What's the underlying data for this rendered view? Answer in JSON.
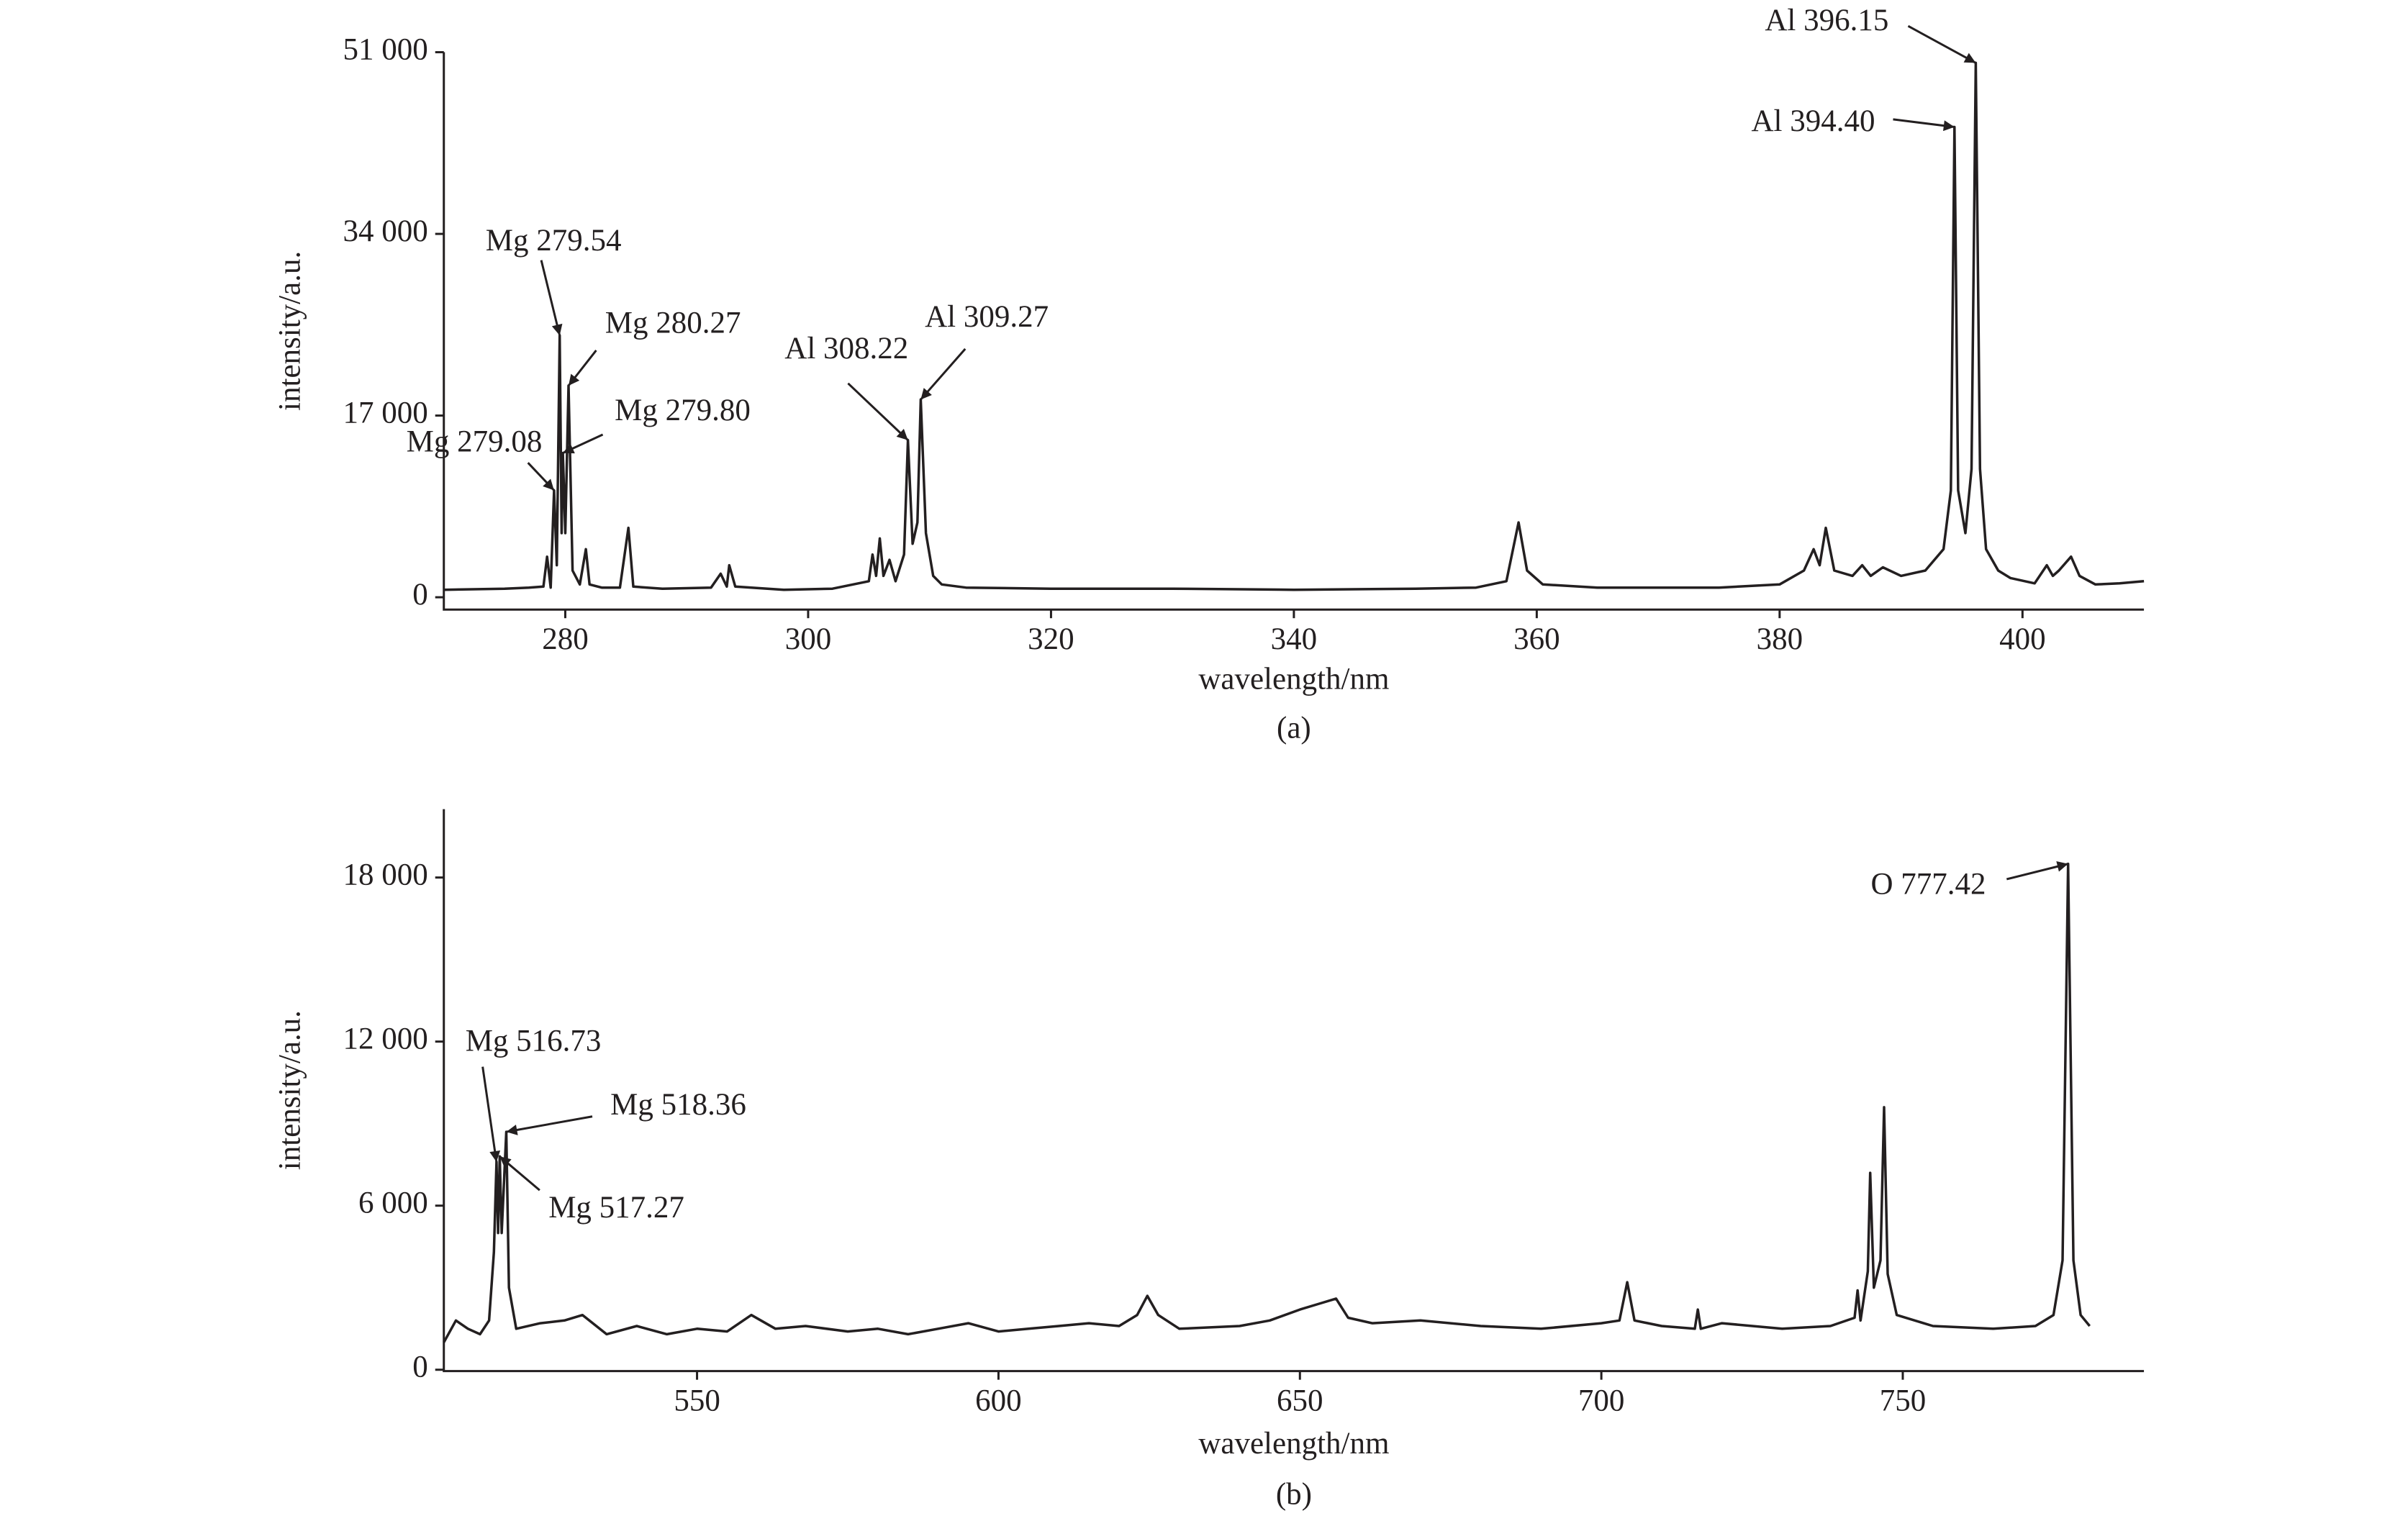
{
  "chart_data": [
    {
      "type": "line",
      "title": "(a)",
      "xlabel": "wavelength/nm",
      "ylabel": "intensity/a.u.",
      "xlim": [
        270,
        410
      ],
      "xticks": [
        280,
        300,
        320,
        340,
        360,
        380,
        400
      ],
      "ylim": [
        -1150,
        51000
      ],
      "yticks": [
        0,
        {
          "value": 17000,
          "label": "17 000"
        },
        {
          "value": 34000,
          "label": "34 000"
        },
        {
          "value": 51000,
          "label": "51 000"
        }
      ],
      "series": [
        {
          "color": "#231f20",
          "x": [
            270,
            275,
            277,
            278.2,
            278.5,
            278.8,
            279.08,
            279.3,
            279.54,
            279.7,
            279.8,
            280.0,
            280.27,
            280.6,
            281.2,
            281.7,
            282.0,
            283,
            284.5,
            285.2,
            285.6,
            288,
            292,
            292.8,
            293.3,
            293.5,
            294,
            298,
            302,
            305,
            305.3,
            305.6,
            305.9,
            306.2,
            306.7,
            307.2,
            307.9,
            308.22,
            308.6,
            309.0,
            309.27,
            309.7,
            310.3,
            311,
            313,
            320,
            330,
            340,
            350,
            355,
            357.5,
            358.5,
            359.2,
            360.5,
            365,
            370,
            375,
            380,
            382,
            382.8,
            383.3,
            383.8,
            384.5,
            386,
            386.8,
            387.5,
            388.5,
            390,
            392,
            393.5,
            394.1,
            394.4,
            394.7,
            395.3,
            395.8,
            396.15,
            396.5,
            397,
            398,
            399,
            401,
            402,
            402.5,
            403,
            404,
            404.7,
            406,
            408,
            410
          ],
          "values": [
            700,
            800,
            900,
            1000,
            3800,
            900,
            10000,
            3000,
            24500,
            6000,
            13500,
            6000,
            19800,
            2500,
            1200,
            4500,
            1200,
            900,
            900,
            6500,
            1000,
            800,
            900,
            2200,
            1000,
            3000,
            1000,
            700,
            800,
            1500,
            4000,
            2000,
            5500,
            2000,
            3500,
            1500,
            4000,
            14700,
            5000,
            7000,
            18500,
            6000,
            2000,
            1200,
            900,
            800,
            800,
            700,
            800,
            900,
            1500,
            7000,
            2500,
            1200,
            900,
            900,
            900,
            1200,
            2500,
            4500,
            3000,
            6500,
            2500,
            2000,
            3000,
            2000,
            2800,
            2000,
            2500,
            4500,
            10000,
            44000,
            10000,
            6000,
            12000,
            50000,
            12000,
            4500,
            2500,
            1800,
            1300,
            3000,
            2000,
            2500,
            3800,
            2000,
            1200,
            1300,
            1500
          ]
        }
      ],
      "annotations": [
        {
          "text": "Al 396.15",
          "x": 396.15,
          "y": 50000
        },
        {
          "text": "Al 394.40",
          "x": 394.4,
          "y": 44000
        },
        {
          "text": "Mg 279.54",
          "x": 279.54,
          "y": 24500
        },
        {
          "text": "Mg 280.27",
          "x": 280.27,
          "y": 19800
        },
        {
          "text": "Mg 279.80",
          "x": 279.8,
          "y": 13500
        },
        {
          "text": "Mg 279.08",
          "x": 279.08,
          "y": 10000
        },
        {
          "text": "Al 308.22",
          "x": 308.22,
          "y": 14700
        },
        {
          "text": "Al 309.27",
          "x": 309.27,
          "y": 18500
        }
      ]
    },
    {
      "type": "line",
      "title": "(b)",
      "xlabel": "wavelength/nm",
      "ylabel": "intensity/a.u.",
      "xlim": [
        508,
        790
      ],
      "xticks": [
        550,
        600,
        650,
        700,
        750
      ],
      "ylim": [
        -50,
        20500
      ],
      "yticks": [
        0,
        {
          "value": 6000,
          "label": "6 000"
        },
        {
          "value": 12000,
          "label": "12 000"
        },
        {
          "value": 18000,
          "label": "18 000"
        }
      ],
      "series": [
        {
          "color": "#231f20",
          "x": [
            508,
            510,
            512,
            514,
            515.5,
            516.3,
            516.73,
            517.0,
            517.27,
            517.6,
            518.36,
            518.8,
            520,
            524,
            528,
            531,
            535,
            540,
            545,
            550,
            555,
            559,
            563,
            568,
            575,
            580,
            585,
            590,
            595,
            600,
            605,
            610,
            615,
            620,
            623,
            624.7,
            626.5,
            630,
            640,
            645,
            650,
            653,
            656,
            658,
            662,
            670,
            680,
            690,
            700,
            703,
            704.3,
            705.5,
            710,
            715.5,
            716,
            716.5,
            720,
            730,
            738,
            742,
            742.5,
            743,
            744.2,
            744.6,
            745.2,
            746.3,
            746.9,
            747.5,
            749,
            755,
            765,
            772,
            775,
            776.5,
            777.42,
            778.3,
            779.5,
            781
          ],
          "values": [
            1000,
            1800,
            1500,
            1300,
            1800,
            4300,
            7600,
            5000,
            7800,
            5000,
            8700,
            3000,
            1500,
            1700,
            1800,
            2000,
            1300,
            1600,
            1300,
            1500,
            1400,
            2000,
            1500,
            1600,
            1400,
            1500,
            1300,
            1500,
            1700,
            1400,
            1500,
            1600,
            1700,
            1600,
            2000,
            2700,
            2000,
            1500,
            1600,
            1800,
            2200,
            2400,
            2600,
            1900,
            1700,
            1800,
            1600,
            1500,
            1700,
            1800,
            3200,
            1800,
            1600,
            1500,
            2200,
            1500,
            1700,
            1500,
            1600,
            1900,
            2900,
            1800,
            3600,
            7200,
            3000,
            4000,
            9600,
            3500,
            2000,
            1600,
            1500,
            1600,
            2000,
            4000,
            18500,
            4000,
            2000,
            1600
          ]
        }
      ],
      "annotations": [
        {
          "text": "O 777.42",
          "x": 777.42,
          "y": 18500
        },
        {
          "text": "Mg 516.73",
          "x": 516.73,
          "y": 7600
        },
        {
          "text": "Mg 518.36",
          "x": 518.36,
          "y": 8700
        },
        {
          "text": "Mg 517.27",
          "x": 517.27,
          "y": 7800
        }
      ]
    }
  ]
}
